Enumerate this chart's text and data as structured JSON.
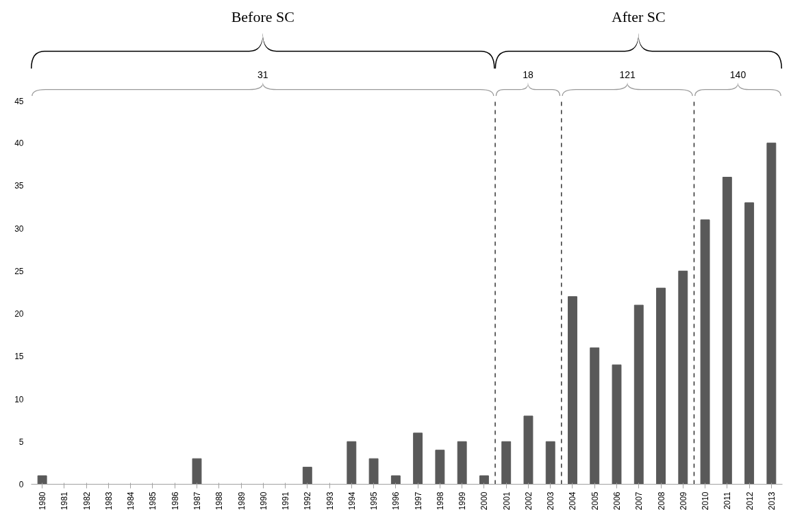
{
  "chart_data": {
    "type": "bar",
    "x": [
      1980,
      1981,
      1982,
      1983,
      1984,
      1985,
      1986,
      1987,
      1988,
      1989,
      1990,
      1991,
      1992,
      1993,
      1994,
      1995,
      1996,
      1997,
      1998,
      1999,
      2000,
      2001,
      2002,
      2003,
      2004,
      2005,
      2006,
      2007,
      2008,
      2009,
      2010,
      2011,
      2012,
      2013
    ],
    "values": [
      1,
      0,
      0,
      0,
      0,
      0,
      0,
      3,
      0,
      0,
      0,
      0,
      2,
      0,
      5,
      3,
      1,
      6,
      4,
      5,
      1,
      5,
      8,
      5,
      22,
      16,
      14,
      21,
      23,
      25,
      31,
      36,
      33,
      40
    ],
    "color": "#595959",
    "xlim": [
      1979.5,
      2013.5
    ],
    "xticks": [
      1980,
      1981,
      1982,
      1983,
      1984,
      1985,
      1986,
      1987,
      1988,
      1989,
      1990,
      1991,
      1992,
      1993,
      1994,
      1995,
      1996,
      1997,
      1998,
      1999,
      2000,
      2001,
      2002,
      2003,
      2004,
      2005,
      2006,
      2007,
      2008,
      2009,
      2010,
      2011,
      2012,
      2013
    ],
    "ylim": [
      0,
      45
    ],
    "yticks": [
      0,
      5,
      10,
      15,
      20,
      25,
      30,
      35,
      40,
      45
    ],
    "grid": false,
    "ref_lines": [
      {
        "axis": "x",
        "value": 2000.5,
        "line_style": "dashed",
        "color": "#000000"
      },
      {
        "axis": "x",
        "value": 2003.5,
        "line_style": "dashed",
        "color": "#000000"
      },
      {
        "axis": "x",
        "value": 2009.5,
        "line_style": "dashed",
        "color": "#000000"
      }
    ],
    "annotations": [
      "Before SC",
      "After SC",
      "31",
      "18",
      "121",
      "140"
    ]
  }
}
